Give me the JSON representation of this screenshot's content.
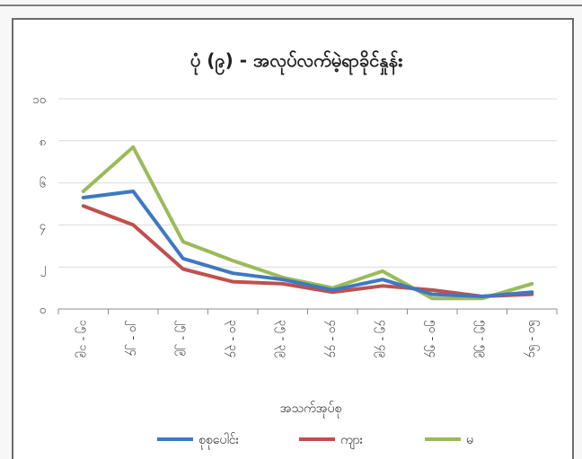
{
  "chart_data": {
    "type": "line",
    "title": "ပုံ (၉) - အလုပ်လက်မဲ့ရာခိုင်နှုန်း",
    "xlabel": "အသက်အုပ်စု",
    "ylabel": "",
    "ylim": [
      0,
      10
    ],
    "yticks": [
      "၀",
      "၂",
      "၄",
      "၆",
      "၈",
      "၁၀"
    ],
    "categories": [
      "၁၅ - ၁၉",
      "၂၀ - ၂၄",
      "၂၅ - ၂၉",
      "၃၀ - ၃၄",
      "၃၅ - ၃၉",
      "၄၀ - ၄၄",
      "၄၅ - ၄၉",
      "၅၀ - ၅၄",
      "၅၅ - ၅၉",
      "၆၀ - ၆၄"
    ],
    "grid": true,
    "legend_position": "bottom",
    "series": [
      {
        "name": "စုစုပေါင်း",
        "color": "#3f78c2",
        "values": [
          5.3,
          5.6,
          2.4,
          1.7,
          1.4,
          0.9,
          1.4,
          0.7,
          0.6,
          0.8
        ]
      },
      {
        "name": "ကျား",
        "color": "#c0504d",
        "values": [
          4.9,
          4.0,
          1.9,
          1.3,
          1.2,
          0.8,
          1.1,
          0.9,
          0.6,
          0.7
        ]
      },
      {
        "name": "မ",
        "color": "#9bbb59",
        "values": [
          5.6,
          7.7,
          3.2,
          2.3,
          1.5,
          1.0,
          1.8,
          0.5,
          0.5,
          1.2
        ]
      }
    ]
  }
}
